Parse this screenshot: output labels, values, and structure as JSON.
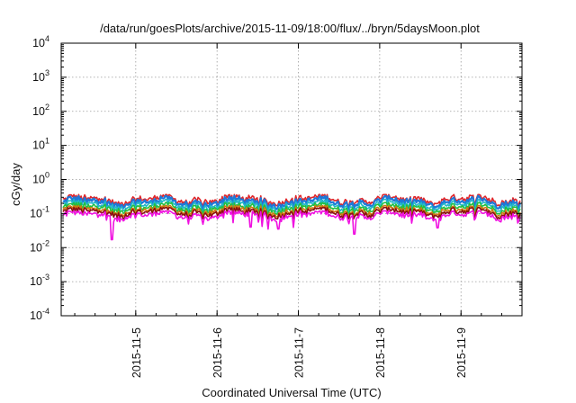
{
  "chart_data": {
    "type": "line",
    "title": "/data/run/goesPlots/archive/2015-11-09/18:00/flux/../bryn/5daysMoon.plot",
    "xlabel": "Coordinated Universal Time (UTC)",
    "ylabel": "cGy/day",
    "yscale": "log",
    "ylim": [
      0.0001,
      10000
    ],
    "xlim": [
      "2015-11-04 02:00",
      "2015-11-09 18:00"
    ],
    "grid": true,
    "legend": "none",
    "y_ticks": [
      {
        "base": "10",
        "exp": "-4"
      },
      {
        "base": "10",
        "exp": "-3"
      },
      {
        "base": "10",
        "exp": "-2"
      },
      {
        "base": "10",
        "exp": "-1"
      },
      {
        "base": "10",
        "exp": "0"
      },
      {
        "base": "10",
        "exp": "1"
      },
      {
        "base": "10",
        "exp": "2"
      },
      {
        "base": "10",
        "exp": "3"
      },
      {
        "base": "10",
        "exp": "4"
      }
    ],
    "x_ticks": [
      "2015-11-5",
      "2015-11-6",
      "2015-11-7",
      "2015-11-8",
      "2015-11-9"
    ],
    "x_tick_dates": [
      "2015-11-05",
      "2015-11-06",
      "2015-11-07",
      "2015-11-08",
      "2015-11-09"
    ],
    "series": [
      {
        "color": "#e0262a",
        "level": 0.26,
        "min": 0.17,
        "max": 0.36
      },
      {
        "color": "#1e78d8",
        "level": 0.22,
        "min": 0.12,
        "max": 0.33
      },
      {
        "color": "#22b8c8",
        "level": 0.18,
        "min": 0.1,
        "max": 0.26
      },
      {
        "color": "#20c040",
        "level": 0.15,
        "min": 0.09,
        "max": 0.21
      },
      {
        "color": "#d07a10",
        "level": 0.125,
        "min": 0.08,
        "max": 0.17
      },
      {
        "color": "#8a1010",
        "level": 0.11,
        "min": 0.07,
        "max": 0.15
      },
      {
        "color": "#f010e0",
        "level": 0.09,
        "min": 0.017,
        "max": 0.12
      }
    ],
    "dips": [
      {
        "time": "2015-11-04 17:00",
        "value": 0.017
      },
      {
        "time": "2015-11-06 10:00",
        "value": 0.04
      },
      {
        "time": "2015-11-06 18:00",
        "value": 0.035
      },
      {
        "time": "2015-11-07 16:30",
        "value": 0.025
      },
      {
        "time": "2015-11-08 17:00",
        "value": 0.038
      }
    ]
  }
}
